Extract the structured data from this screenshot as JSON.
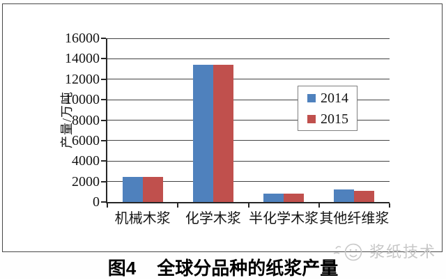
{
  "chart_data": {
    "type": "bar",
    "title": "",
    "categories": [
      "机械木浆",
      "化学木浆",
      "半化学木浆",
      "其他纤维浆"
    ],
    "series": [
      {
        "name": "2014",
        "color": "#4F81BD",
        "values": [
          2450,
          13400,
          800,
          1250
        ]
      },
      {
        "name": "2015",
        "color": "#C0504D",
        "values": [
          2450,
          13400,
          800,
          1100
        ]
      }
    ],
    "xlabel": "",
    "ylabel": "产量/万吨",
    "ylim": [
      0,
      16000
    ],
    "ytick_step": 2000,
    "ytick_labels": [
      "0",
      "2000",
      "4000",
      "6000",
      "8000",
      "10000",
      "12000",
      "14000",
      "16000"
    ],
    "grid": true,
    "legend": {
      "entries": [
        "2014",
        "2015"
      ],
      "position": "inside-right"
    }
  },
  "caption": {
    "figure_label": "图4",
    "title": "全球分品种的纸浆产量"
  },
  "watermark": {
    "text": "浆纸技术",
    "icon": "doodle-face-icon",
    "color": "#c7c7c7"
  },
  "colors": {
    "axis": "#262626",
    "grid": "#414141",
    "frame_border": "#474747",
    "series_2014": "#4F81BD",
    "series_2015": "#C0504D"
  }
}
